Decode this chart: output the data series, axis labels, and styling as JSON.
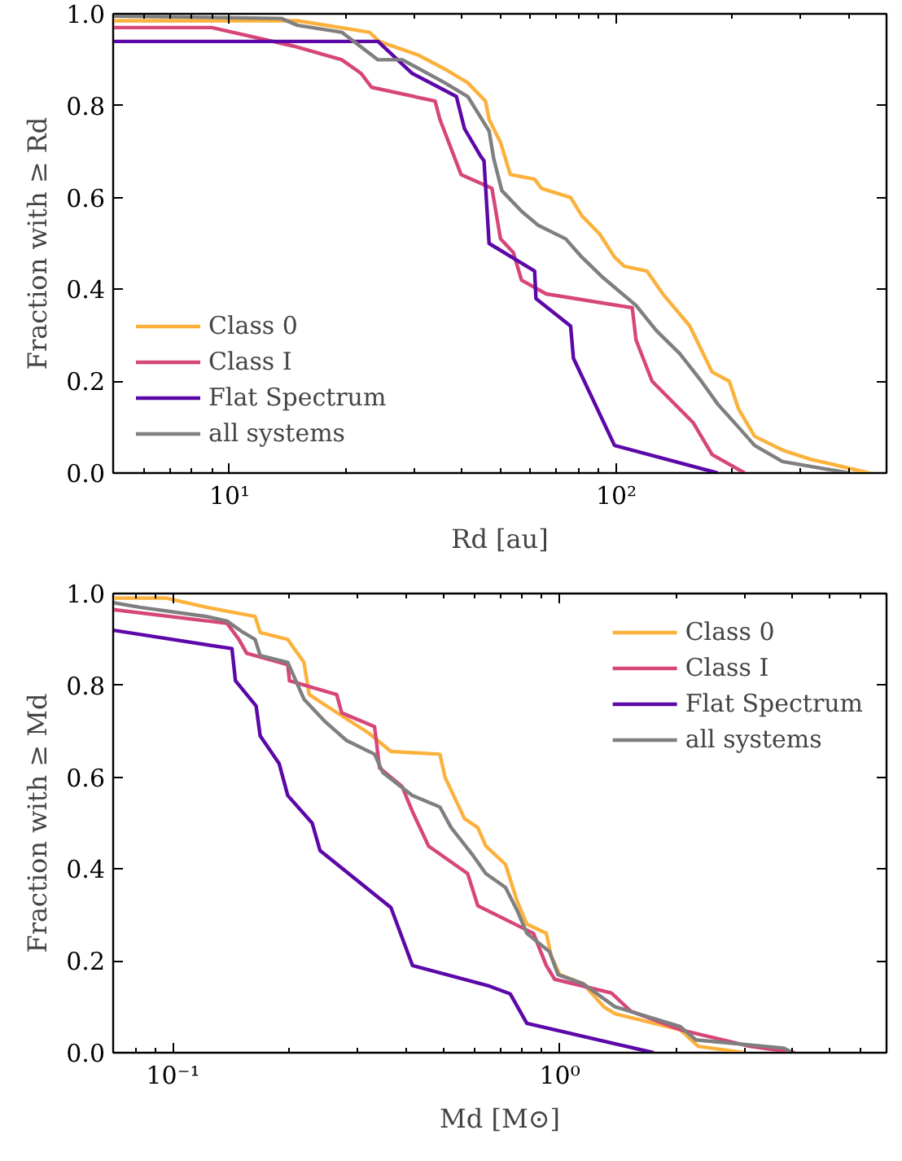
{
  "chart_data": [
    {
      "type": "line",
      "xlabel": "Rd [au]",
      "ylabel": "Fraction with ≥ Rd",
      "log": "x",
      "legend": "bottom left",
      "grid": false,
      "xlim": [
        5,
        500
      ],
      "xticks": [
        {
          "value": 10,
          "label": "10¹"
        },
        {
          "value": 100,
          "label": "10²"
        }
      ],
      "ylim": [
        0,
        1
      ],
      "yticks": [
        {
          "value": 0,
          "label": "0.0"
        },
        {
          "value": 0.2,
          "label": "0.2"
        },
        {
          "value": 0.4,
          "label": "0.4"
        },
        {
          "value": 0.6,
          "label": "0.6"
        },
        {
          "value": 0.8,
          "label": "0.8"
        },
        {
          "value": 1,
          "label": "1.0"
        }
      ],
      "series": [
        {
          "name": "Class 0",
          "color": "#fbb13c",
          "x": [
            5,
            15,
            23,
            24.4,
            30.8,
            36,
            41.3,
            45.9,
            46.9,
            50.2,
            53.2,
            61.5,
            64,
            76.2,
            81.5,
            90.7,
            99,
            105,
            120,
            132,
            155,
            177,
            196,
            207,
            228,
            269,
            318,
            451
          ],
          "values": [
            0.985,
            0.985,
            0.96,
            0.94,
            0.91,
            0.88,
            0.85,
            0.81,
            0.77,
            0.72,
            0.65,
            0.64,
            0.62,
            0.6,
            0.56,
            0.52,
            0.47,
            0.45,
            0.44,
            0.39,
            0.32,
            0.22,
            0.2,
            0.14,
            0.08,
            0.05,
            0.03,
            0
          ]
        },
        {
          "name": "Class I",
          "color": "#d6467a",
          "x": [
            5,
            9,
            14.6,
            19.5,
            21.9,
            23.3,
            34,
            35,
            39.7,
            47.7,
            50.2,
            54.2,
            56.9,
            65.9,
            110,
            112.5,
            123.8,
            158,
            177,
            215
          ],
          "values": [
            0.97,
            0.97,
            0.93,
            0.9,
            0.87,
            0.84,
            0.81,
            0.77,
            0.65,
            0.62,
            0.51,
            0.48,
            0.42,
            0.39,
            0.36,
            0.29,
            0.2,
            0.11,
            0.04,
            0
          ]
        },
        {
          "name": "Flat Spectrum",
          "color": "#5c07a8",
          "x": [
            5,
            24.2,
            29.7,
            38.6,
            40.5,
            44.6,
            45.5,
            46.9,
            61.5,
            62,
            76.2,
            77.5,
            99,
            183
          ],
          "values": [
            0.94,
            0.94,
            0.87,
            0.82,
            0.75,
            0.69,
            0.68,
            0.5,
            0.44,
            0.38,
            0.32,
            0.25,
            0.06,
            0
          ]
        },
        {
          "name": "all systems",
          "color": "#7f7f7f",
          "x": [
            5,
            13.6,
            15,
            19.5,
            24.2,
            28,
            36,
            41.3,
            46.9,
            48.2,
            50.6,
            56.9,
            62.7,
            74,
            81.5,
            92.6,
            112.5,
            127,
            146,
            166,
            183,
            207,
            228,
            269,
            400
          ],
          "values": [
            0.995,
            0.99,
            0.975,
            0.96,
            0.9,
            0.9,
            0.85,
            0.82,
            0.745,
            0.685,
            0.615,
            0.57,
            0.54,
            0.51,
            0.47,
            0.425,
            0.365,
            0.31,
            0.26,
            0.2,
            0.15,
            0.1,
            0.06,
            0.025,
            0
          ]
        }
      ]
    },
    {
      "type": "line",
      "xlabel": "Md [M⊙]",
      "ylabel": "Fraction with ≥ Md",
      "log": "x",
      "legend": "top right",
      "grid": false,
      "xlim": [
        0.07,
        7
      ],
      "xticks": [
        {
          "value": 0.1,
          "label": "10⁻¹"
        },
        {
          "value": 1,
          "label": "10⁰"
        }
      ],
      "ylim": [
        0,
        1
      ],
      "yticks": [
        {
          "value": 0,
          "label": "0.0"
        },
        {
          "value": 0.2,
          "label": "0.2"
        },
        {
          "value": 0.4,
          "label": "0.4"
        },
        {
          "value": 0.6,
          "label": "0.6"
        },
        {
          "value": 0.8,
          "label": "0.8"
        },
        {
          "value": 1,
          "label": "1.0"
        }
      ],
      "series": [
        {
          "name": "Class 0",
          "color": "#fbb13c",
          "x": [
            0.07,
            0.096,
            0.122,
            0.163,
            0.168,
            0.198,
            0.218,
            0.225,
            0.255,
            0.322,
            0.366,
            0.49,
            0.505,
            0.567,
            0.614,
            0.644,
            0.724,
            0.776,
            0.822,
            0.923,
            0.951,
            1.0,
            1.15,
            1.3,
            1.39,
            2.05,
            2.28,
            3.0
          ],
          "values": [
            0.99,
            0.99,
            0.97,
            0.95,
            0.915,
            0.9,
            0.85,
            0.78,
            0.75,
            0.695,
            0.656,
            0.65,
            0.6,
            0.51,
            0.49,
            0.45,
            0.41,
            0.33,
            0.28,
            0.26,
            0.21,
            0.17,
            0.15,
            0.1,
            0.085,
            0.05,
            0.014,
            0
          ]
        },
        {
          "name": "Class I",
          "color": "#d6467a",
          "x": [
            0.07,
            0.138,
            0.148,
            0.155,
            0.198,
            0.2,
            0.265,
            0.273,
            0.332,
            0.342,
            0.391,
            0.416,
            0.458,
            0.578,
            0.614,
            0.855,
            0.923,
            0.97,
            1.36,
            1.53,
            2.05,
            3.1,
            4.06
          ],
          "values": [
            0.965,
            0.935,
            0.9,
            0.87,
            0.845,
            0.81,
            0.78,
            0.74,
            0.71,
            0.62,
            0.58,
            0.525,
            0.45,
            0.39,
            0.32,
            0.26,
            0.19,
            0.16,
            0.13,
            0.09,
            0.05,
            0.014,
            0
          ]
        },
        {
          "name": "Flat Spectrum",
          "color": "#5c07a8",
          "x": [
            0.07,
            0.142,
            0.145,
            0.164,
            0.168,
            0.188,
            0.198,
            0.229,
            0.24,
            0.366,
            0.416,
            0.658,
            0.745,
            0.822,
            1.75
          ],
          "values": [
            0.92,
            0.88,
            0.81,
            0.755,
            0.69,
            0.63,
            0.56,
            0.5,
            0.44,
            0.316,
            0.19,
            0.145,
            0.128,
            0.064,
            0
          ]
        },
        {
          "name": "all systems",
          "color": "#7f7f7f",
          "x": [
            0.07,
            0.082,
            0.122,
            0.138,
            0.152,
            0.163,
            0.168,
            0.198,
            0.218,
            0.248,
            0.281,
            0.332,
            0.349,
            0.416,
            0.49,
            0.524,
            0.596,
            0.644,
            0.724,
            0.776,
            0.822,
            0.941,
            0.99,
            1.15,
            1.39,
            2.05,
            2.25,
            3.8,
            4.0
          ],
          "values": [
            0.98,
            0.97,
            0.95,
            0.94,
            0.915,
            0.9,
            0.865,
            0.85,
            0.77,
            0.72,
            0.68,
            0.65,
            0.61,
            0.56,
            0.535,
            0.49,
            0.43,
            0.39,
            0.36,
            0.31,
            0.26,
            0.22,
            0.17,
            0.15,
            0.1,
            0.057,
            0.028,
            0.01,
            0
          ]
        }
      ]
    }
  ]
}
